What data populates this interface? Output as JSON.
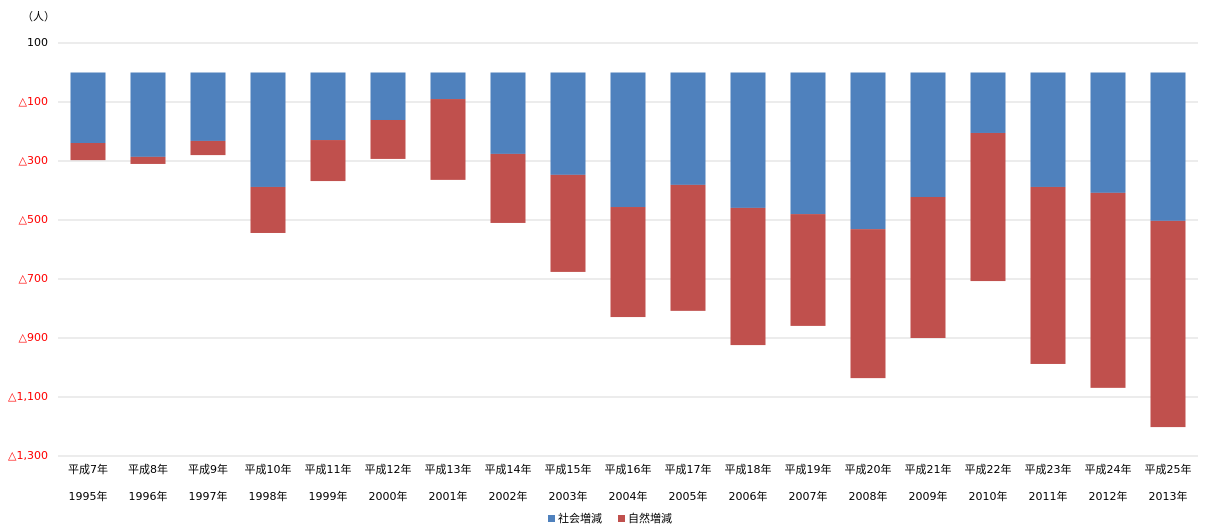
{
  "chart_data": {
    "type": "stacked_bar",
    "y_unit": "（人）",
    "categories": [
      [
        "平成7年",
        "1995年"
      ],
      [
        "平成8年",
        "1996年"
      ],
      [
        "平成9年",
        "1997年"
      ],
      [
        "平成10年",
        "1998年"
      ],
      [
        "平成11年",
        "1999年"
      ],
      [
        "平成12年",
        "2000年"
      ],
      [
        "平成13年",
        "2001年"
      ],
      [
        "平成14年",
        "2002年"
      ],
      [
        "平成15年",
        "2003年"
      ],
      [
        "平成16年",
        "2004年"
      ],
      [
        "平成17年",
        "2005年"
      ],
      [
        "平成18年",
        "2006年"
      ],
      [
        "平成19年",
        "2007年"
      ],
      [
        "平成20年",
        "2008年"
      ],
      [
        "平成21年",
        "2009年"
      ],
      [
        "平成22年",
        "2010年"
      ],
      [
        "平成23年",
        "2011年"
      ],
      [
        "平成24年",
        "2012年"
      ],
      [
        "平成25年",
        "2013年"
      ]
    ],
    "series": [
      {
        "name": "社会増減",
        "color": "#4f81bd",
        "values": [
          -239,
          -286,
          -232,
          -388,
          -229,
          -161,
          -90,
          -276,
          -347,
          -456,
          -381,
          -459,
          -480,
          -531,
          -422,
          -205,
          -388,
          -408,
          -503
        ]
      },
      {
        "name": "自然増減",
        "color": "#c0504d",
        "values": [
          -58,
          -24,
          -48,
          -156,
          -139,
          -132,
          -274,
          -234,
          -329,
          -373,
          -427,
          -465,
          -379,
          -505,
          -478,
          -502,
          -600,
          -661,
          -699
        ]
      }
    ],
    "ylim": [
      100,
      -1300
    ],
    "yticks": [
      100,
      {
        "value": -100,
        "label": "△100"
      },
      {
        "value": -300,
        "label": "△300"
      },
      {
        "value": -500,
        "label": "△500"
      },
      {
        "value": -700,
        "label": "△700"
      },
      {
        "value": -900,
        "label": "△900"
      },
      {
        "value": -1100,
        "label": "△1,100"
      },
      {
        "value": -1300,
        "label": "△1,300"
      }
    ],
    "negative_tick_color": "#ff0000",
    "grid": true,
    "legend": "bottom"
  }
}
